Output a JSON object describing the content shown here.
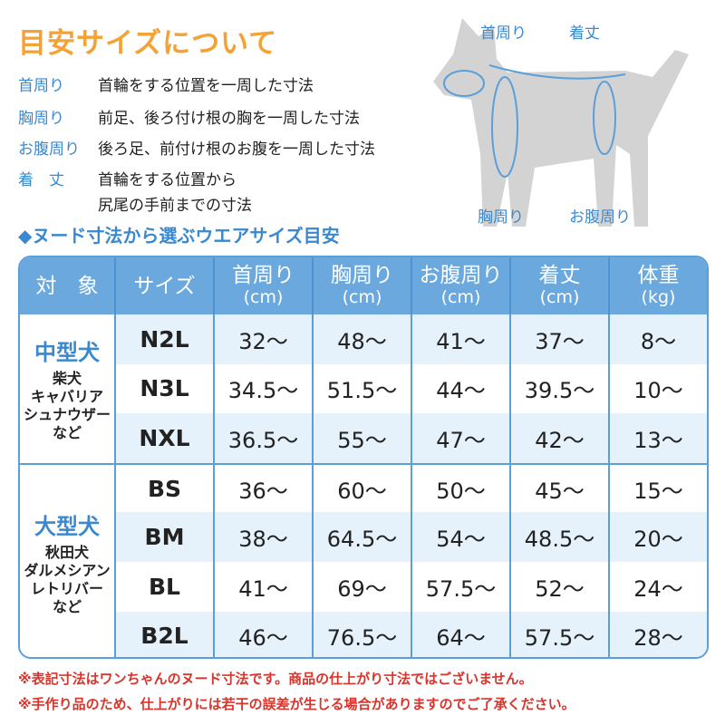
{
  "title": "目安サイズについて",
  "definitions": [
    {
      "term": "首周り",
      "desc": "首輪をする位置を一周した寸法"
    },
    {
      "term": "胸周り",
      "desc": "前足、後ろ付け根の胸を一周した寸法"
    },
    {
      "term": "お腹周り",
      "desc": "後ろ足、前付け根のお腹を一周した寸法"
    },
    {
      "term": "着　丈",
      "desc": "首輪をする位置から",
      "desc2": "尻尾の手前までの寸法"
    }
  ],
  "subtitle": "◆ヌード寸法から選ぶウエアサイズ目安",
  "illustration": {
    "neck": "首周り",
    "length": "着丈",
    "chest": "胸周り",
    "belly": "お腹周り"
  },
  "table": {
    "headers": [
      {
        "l1": "対　象",
        "l2": ""
      },
      {
        "l1": "サイズ",
        "l2": ""
      },
      {
        "l1": "首周り",
        "l2": "(cm)"
      },
      {
        "l1": "胸周り",
        "l2": "(cm)"
      },
      {
        "l1": "お腹周り",
        "l2": "(cm)"
      },
      {
        "l1": "着丈",
        "l2": "(cm)"
      },
      {
        "l1": "体重",
        "l2": "(kg)"
      }
    ],
    "groups": [
      {
        "title": "中型犬",
        "breeds": [
          "柴犬",
          "キャバリア",
          "シュナウザー",
          "など"
        ]
      },
      {
        "title": "大型犬",
        "breeds": [
          "秋田犬",
          "ダルメシアン",
          "レトリバー",
          "など"
        ]
      }
    ],
    "rows": [
      [
        "N2L",
        "32〜",
        "48〜",
        "41〜",
        "37〜",
        "8〜"
      ],
      [
        "N3L",
        "34.5〜",
        "51.5〜",
        "44〜",
        "39.5〜",
        "10〜"
      ],
      [
        "NXL",
        "36.5〜",
        "55〜",
        "47〜",
        "42〜",
        "13〜"
      ],
      [
        "BS",
        "36〜",
        "60〜",
        "50〜",
        "45〜",
        "15〜"
      ],
      [
        "BM",
        "38〜",
        "64.5〜",
        "54〜",
        "48.5〜",
        "20〜"
      ],
      [
        "BL",
        "41〜",
        "69〜",
        "57.5〜",
        "52〜",
        "24〜"
      ],
      [
        "B2L",
        "46〜",
        "76.5〜",
        "64〜",
        "57.5〜",
        "28〜"
      ]
    ]
  },
  "notes": [
    "※表記寸法はワンちゃんのヌード寸法です。商品の仕上がり寸法ではございません。",
    "※手作り品のため、仕上がりには若干の誤差が生じる場合がありますのでご了承ください。"
  ],
  "colors": {
    "accent": "#3a88d0",
    "title": "#f4a235",
    "header": "#6aa8de",
    "stripe": "#e6f2fb",
    "note": "#d9342b"
  }
}
